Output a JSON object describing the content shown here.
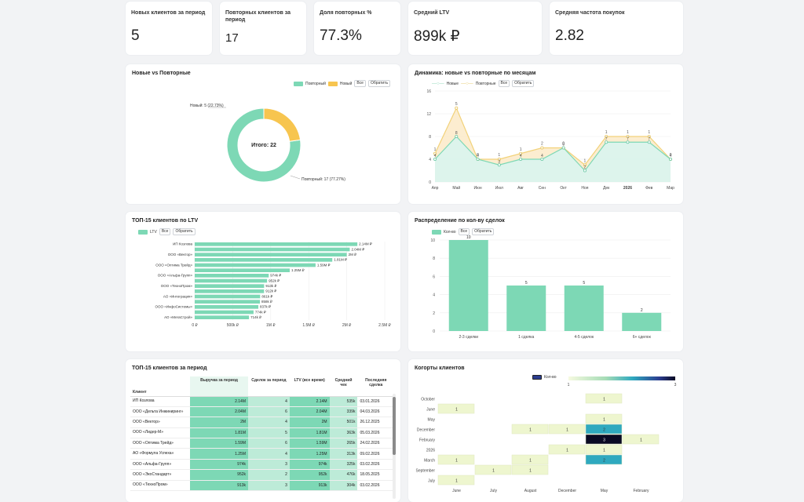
{
  "kpis": [
    {
      "label": "Новых клиентов за период",
      "value": "5"
    },
    {
      "label": "Повторных клиентов за период",
      "value": "17"
    },
    {
      "label": "Доля повторных %",
      "value": "77.3%"
    },
    {
      "label": "Средний LTV",
      "value": "899k ₽"
    },
    {
      "label": "Средняя частота покупок",
      "value": "2.82"
    }
  ],
  "donut": {
    "title": "Новые vs Повторные",
    "legend": [
      "Повторный",
      "Новый"
    ],
    "btn_all": "Все",
    "btn_invert": "Обратить",
    "center": "Итого: 22",
    "label_new": "Новый: 5 (22.73%)",
    "label_rep": "Повторный: 17 (77.27%)",
    "colors": {
      "repeat": "#7dd8b5",
      "new": "#f7c54f"
    }
  },
  "dynamics": {
    "title": "Динамика: новые vs повторные по месяцам",
    "legend": [
      "Новые",
      "Повторные"
    ],
    "btn_all": "Все",
    "btn_invert": "Обратить"
  },
  "top15": {
    "title": "ТОП-15 клиентов по LTV",
    "legend": "LTV",
    "btn_all": "Все",
    "btn_invert": "Обратить"
  },
  "dist": {
    "title": "Распределение по кол-ву сделок",
    "legend": "Кол-во",
    "btn_all": "Все",
    "btn_invert": "Обратить"
  },
  "table": {
    "title": "ТОП-15 клиентов за период",
    "headers": [
      "Клиент",
      "Выручка за период",
      "Сделок за период",
      "LTV (все время)",
      "Средний чек",
      "Последняя сделка"
    ],
    "rows": [
      {
        "client": "ИП Козлова",
        "rev": "2.14M",
        "deals": "4",
        "ltv": "2.14M",
        "avg": "535k",
        "last": "03.01.2026"
      },
      {
        "client": "ООО «Дельта Инжиниринг»",
        "rev": "2.04M",
        "deals": "6",
        "ltv": "2.04M",
        "avg": "339k",
        "last": "04.03.2026"
      },
      {
        "client": "ООО «Вектор»",
        "rev": "2M",
        "deals": "4",
        "ltv": "2M",
        "avg": "501k",
        "last": "26.12.2025"
      },
      {
        "client": "ООО «Лидер-М»",
        "rev": "1.81M",
        "deals": "5",
        "ltv": "1.81M",
        "avg": "363k",
        "last": "05.03.2026"
      },
      {
        "client": "ООО «Оптима Трейд»",
        "rev": "1.59M",
        "deals": "6",
        "ltv": "1.59M",
        "avg": "265k",
        "last": "24.02.2026"
      },
      {
        "client": "АО «Формула Успеха»",
        "rev": "1.25M",
        "deals": "4",
        "ltv": "1.25M",
        "avg": "313k",
        "last": "09.02.2026"
      },
      {
        "client": "ООО «Альфа-Групп»",
        "rev": "974k",
        "deals": "3",
        "ltv": "974k",
        "avg": "325k",
        "last": "03.02.2026"
      },
      {
        "client": "ООО «ЭкоСтандарт»",
        "rev": "952k",
        "deals": "2",
        "ltv": "952k",
        "avg": "476k",
        "last": "18.05.2025"
      },
      {
        "client": "ООО «ТехноПром»",
        "rev": "913k",
        "deals": "3",
        "ltv": "913k",
        "avg": "304k",
        "last": "03.02.2026"
      }
    ]
  },
  "cohorts": {
    "title": "Когорты клиентов",
    "legend": "Кол-во",
    "scale_min": "1",
    "scale_max": "3",
    "x_labels": [
      "June",
      "July",
      "August",
      "December",
      "May",
      "February"
    ],
    "y_labels": [
      "October",
      "June",
      "May",
      "December",
      "February",
      "2026",
      "March",
      "September",
      "July"
    ]
  },
  "chart_data": [
    {
      "type": "pie",
      "title": "Новые vs Повторные",
      "labels": [
        "Повторный",
        "Новый"
      ],
      "values": [
        17,
        5
      ]
    },
    {
      "type": "area",
      "title": "Динамика: новые vs повторные по месяцам",
      "categories": [
        "Апр",
        "Май",
        "Июн",
        "Июл",
        "Авг",
        "Сен",
        "Окт",
        "Ноя",
        "Дек",
        "2026",
        "Фев",
        "Мар"
      ],
      "series": [
        {
          "name": "Новые",
          "values": [
            1,
            5,
            0,
            1,
            1,
            2,
            0,
            1,
            1,
            1,
            1,
            0
          ]
        },
        {
          "name": "Повторные",
          "values": [
            4,
            8,
            4,
            3,
            4,
            4,
            6,
            2,
            7,
            7,
            7,
            4
          ]
        }
      ],
      "y_ticks": [
        0,
        4,
        8,
        12,
        16
      ],
      "ylim": [
        0,
        16
      ]
    },
    {
      "type": "bar",
      "title": "ТОП-15 клиентов по LTV",
      "orientation": "horizontal",
      "categories": [
        "ИП Козлова",
        "",
        "ООО «Вектор»",
        "",
        "ООО «Оптима Трейд»",
        "",
        "ООО «Альфа-Групп»",
        "",
        "ООО «ТехноПром»",
        "",
        "АО «Интеграция»",
        "",
        "ООО «ИнфоСистемы»",
        "",
        "АО «МегаСтрой»"
      ],
      "values": [
        2140000,
        2040000,
        2000000,
        1810000,
        1590000,
        1250000,
        974000,
        952000,
        913000,
        912000,
        861000,
        858000,
        837000,
        774000,
        714000
      ],
      "value_labels": [
        "2.14M ₽",
        "2.04M ₽",
        "2M ₽",
        "1.81M ₽",
        "1.59M ₽",
        "1.25M ₽",
        "974k ₽",
        "952k ₽",
        "913k ₽",
        "912k ₽",
        "861k ₽",
        "858k ₽",
        "837k ₽",
        "774k ₽",
        "714k ₽"
      ],
      "x_ticks": [
        "0 ₽",
        "500k ₽",
        "1M ₽",
        "1.5M ₽",
        "2M ₽",
        "2.5M ₽"
      ],
      "xlim": [
        0,
        2500000
      ]
    },
    {
      "type": "bar",
      "title": "Распределение по кол-ву сделок",
      "categories": [
        "2-3 сделки",
        "1 сделка",
        "4-5 сделок",
        "6+ сделок"
      ],
      "values": [
        10,
        5,
        5,
        2
      ],
      "y_ticks": [
        0,
        2,
        4,
        6,
        8,
        10
      ],
      "ylim": [
        0,
        10
      ]
    },
    {
      "type": "heatmap",
      "title": "Когорты клиентов",
      "x": [
        "June",
        "July",
        "August",
        "December",
        "May",
        "February"
      ],
      "y": [
        "October",
        "June",
        "May",
        "December",
        "February",
        "2026",
        "March",
        "September",
        "July"
      ],
      "cells": [
        {
          "y": "October",
          "x": "May",
          "v": 1
        },
        {
          "y": "June",
          "x": "June",
          "v": 1
        },
        {
          "y": "May",
          "x": "May",
          "v": 1
        },
        {
          "y": "December",
          "x": "August",
          "v": 1
        },
        {
          "y": "December",
          "x": "December",
          "v": 1
        },
        {
          "y": "December",
          "x": "May",
          "v": 2
        },
        {
          "y": "February",
          "x": "May",
          "v": 3
        },
        {
          "y": "February",
          "x": "February",
          "v": 1
        },
        {
          "y": "2026",
          "x": "December",
          "v": 1
        },
        {
          "y": "2026",
          "x": "May",
          "v": 1
        },
        {
          "y": "March",
          "x": "June",
          "v": 1
        },
        {
          "y": "March",
          "x": "August",
          "v": 1
        },
        {
          "y": "March",
          "x": "May",
          "v": 2
        },
        {
          "y": "September",
          "x": "July",
          "v": 1
        },
        {
          "y": "September",
          "x": "August",
          "v": 1
        },
        {
          "y": "July",
          "x": "June",
          "v": 1
        }
      ]
    }
  ]
}
